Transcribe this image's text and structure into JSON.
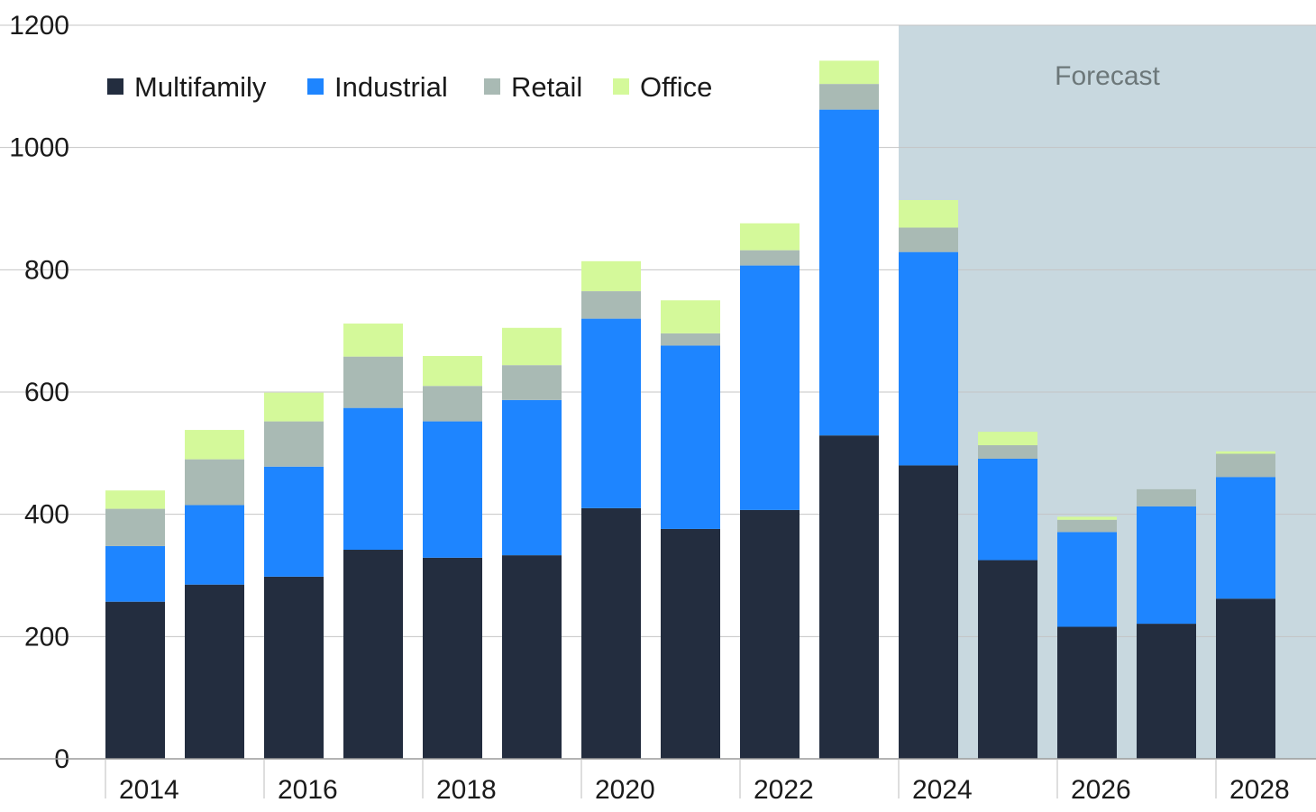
{
  "chart_data": {
    "type": "bar",
    "stacked": true,
    "categories": [
      "2014",
      "2015",
      "2016",
      "2017",
      "2018",
      "2019",
      "2020",
      "2021",
      "2022",
      "2023",
      "2024",
      "2025",
      "2026",
      "2027",
      "2028"
    ],
    "x_tick_labels": [
      "2014",
      "2016",
      "2018",
      "2020",
      "2022",
      "2024",
      "2026",
      "2028"
    ],
    "series": [
      {
        "name": "Multifamily",
        "color": "#232d3f",
        "values": [
          257,
          285,
          298,
          342,
          329,
          333,
          410,
          376,
          407,
          529,
          480,
          325,
          216,
          221,
          262
        ]
      },
      {
        "name": "Industrial",
        "color": "#1e85ff",
        "values": [
          91,
          130,
          180,
          232,
          223,
          254,
          310,
          300,
          400,
          533,
          349,
          166,
          155,
          192,
          199
        ]
      },
      {
        "name": "Retail",
        "color": "#a9bab4",
        "values": [
          61,
          75,
          74,
          84,
          58,
          57,
          45,
          20,
          25,
          42,
          40,
          22,
          20,
          28,
          38
        ]
      },
      {
        "name": "Office",
        "color": "#d4f99a",
        "values": [
          30,
          48,
          47,
          54,
          49,
          61,
          49,
          54,
          44,
          38,
          45,
          22,
          5,
          0,
          4
        ]
      }
    ],
    "ylim": [
      0,
      1200
    ],
    "yticks": [
      0,
      200,
      400,
      600,
      800,
      1000,
      1200
    ],
    "grid": true,
    "legend_position": "top-left",
    "forecast_label": "Forecast",
    "forecast_start": "2024",
    "forecast_color": "#c8d8df",
    "forecast_label_color": "#6c7779",
    "title": "",
    "xlabel": "",
    "ylabel": ""
  }
}
